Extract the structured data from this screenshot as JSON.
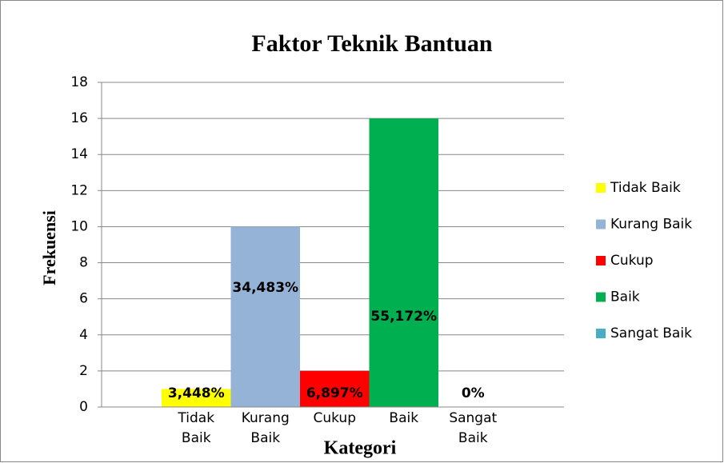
{
  "chart_data": {
    "type": "bar",
    "title": "Faktor Teknik Bantuan",
    "x_label": "Kategori",
    "y_label": "Frekuensi",
    "categories": [
      "Tidak Baik",
      "Kurang Baik",
      "Cukup",
      "Baik",
      "Sangat Baik"
    ],
    "values": [
      1,
      10,
      2,
      16,
      0
    ],
    "percent_labels": [
      "3,448%",
      "34,483%",
      "6,897%",
      "55,172%",
      "0%"
    ],
    "colors": [
      "#ffff00",
      "#95b3d7",
      "#ff0000",
      "#00b050",
      "#4bacc6"
    ],
    "ylim": [
      0,
      18
    ],
    "yticks": [
      0,
      2,
      4,
      6,
      8,
      10,
      12,
      14,
      16,
      18
    ],
    "grid": true,
    "legend": "right"
  }
}
